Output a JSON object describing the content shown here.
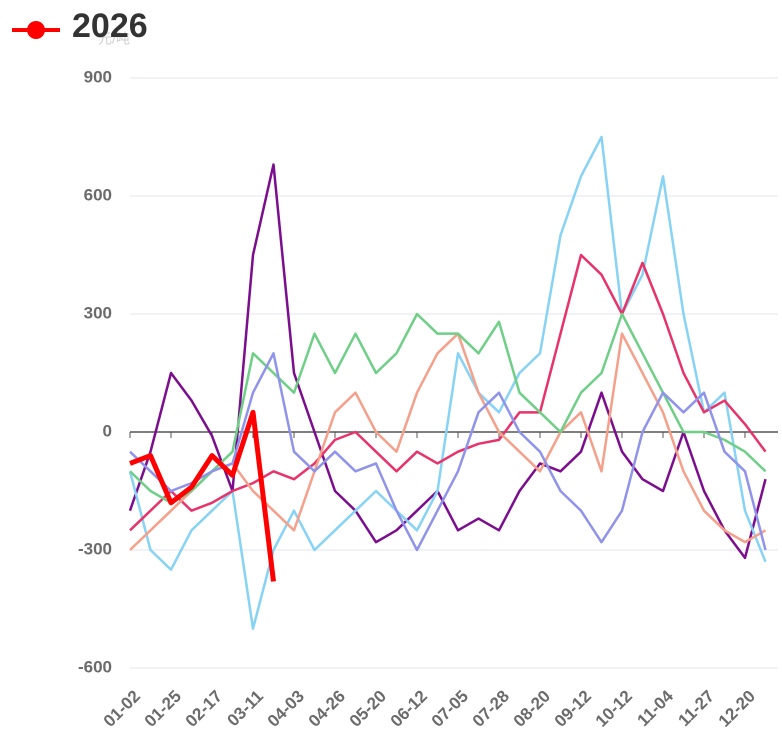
{
  "chart_data": {
    "type": "line",
    "y_unit": "元/吨",
    "categories": [
      "01-02",
      null,
      "01-25",
      null,
      "02-17",
      null,
      "03-11",
      null,
      "04-03",
      null,
      "04-26",
      null,
      "05-20",
      null,
      "06-12",
      null,
      "07-05",
      null,
      "07-28",
      null,
      "08-20",
      null,
      "09-12",
      null,
      "10-12",
      null,
      "11-04",
      null,
      "11-27",
      null,
      "12-20",
      null
    ],
    "ylim": [
      -600,
      900
    ],
    "yticks": [
      -600,
      -300,
      0,
      300,
      600,
      900
    ],
    "grid": true,
    "legend": "top-left",
    "series": [
      {
        "color": "#7b0d8e",
        "values": [
          -200,
          -50,
          150,
          80,
          -10,
          -150,
          450,
          680,
          150,
          0,
          -150,
          -200,
          -280,
          -250,
          -200,
          -150,
          -250,
          -220,
          -250,
          -150,
          -80,
          -100,
          -50,
          100,
          -50,
          -120,
          -150,
          0,
          -150,
          -250,
          -320,
          -120
        ]
      },
      {
        "color": "#87d3f5",
        "values": [
          -100,
          -300,
          -350,
          -250,
          -200,
          -150,
          -500,
          -300,
          -200,
          -300,
          -250,
          -200,
          -150,
          -200,
          -250,
          -150,
          200,
          100,
          50,
          150,
          200,
          500,
          650,
          750,
          300,
          400,
          650,
          300,
          50,
          100,
          -200,
          -330
        ]
      },
      {
        "color": "#e8336a",
        "values": [
          -250,
          -200,
          -150,
          -200,
          -180,
          -150,
          -130,
          -100,
          -120,
          -80,
          -20,
          0,
          -50,
          -100,
          -50,
          -80,
          -50,
          -30,
          -20,
          50,
          50,
          250,
          450,
          400,
          300,
          430,
          300,
          150,
          50,
          80,
          20,
          -50
        ]
      },
      {
        "color": "#f5a08a",
        "values": [
          -300,
          -250,
          -200,
          -150,
          -100,
          -80,
          -150,
          -200,
          -250,
          -100,
          50,
          100,
          0,
          -50,
          100,
          200,
          250,
          100,
          0,
          -50,
          -100,
          0,
          50,
          -100,
          250,
          150,
          50,
          -100,
          -200,
          -250,
          -280,
          -250
        ]
      },
      {
        "color": "#6fcf87",
        "values": [
          -100,
          -150,
          -180,
          -150,
          -100,
          -50,
          200,
          150,
          100,
          250,
          150,
          250,
          150,
          200,
          300,
          250,
          250,
          200,
          280,
          100,
          50,
          0,
          100,
          150,
          300,
          200,
          100,
          0,
          0,
          -20,
          -50,
          -100
        ]
      },
      {
        "color": "#8f94ea",
        "values": [
          -50,
          -100,
          -150,
          -130,
          -100,
          -80,
          100,
          200,
          -50,
          -100,
          -50,
          -100,
          -80,
          -200,
          -300,
          -200,
          -100,
          50,
          100,
          0,
          -50,
          -150,
          -200,
          -280,
          -200,
          0,
          100,
          50,
          100,
          -50,
          -100,
          -300
        ]
      },
      {
        "name": "2026",
        "color": "#ff0000",
        "values": [
          -80,
          -60,
          -180,
          -140,
          -60,
          -110,
          50,
          -380,
          null,
          null,
          null,
          null,
          null,
          null,
          null,
          null,
          null,
          null,
          null,
          null,
          null,
          null,
          null,
          null,
          null,
          null,
          null,
          null,
          null,
          null,
          null,
          null
        ]
      }
    ]
  }
}
